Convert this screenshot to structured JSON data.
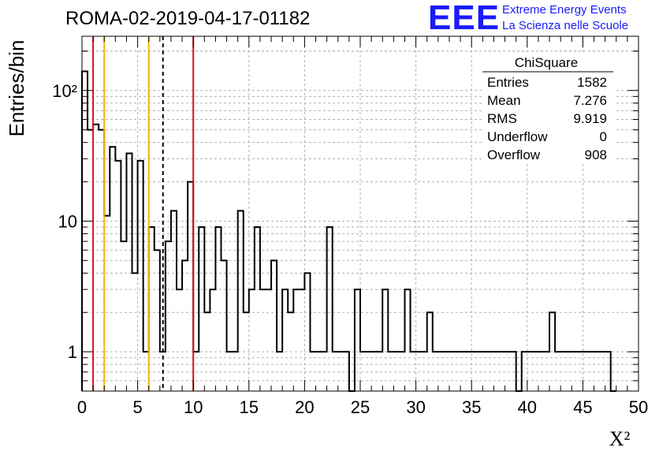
{
  "header": {
    "run_title": "ROMA-02-2019-04-17-01182",
    "logo_text": "EEE",
    "logo_line1": "Extreme Energy Events",
    "logo_line2": "La Scienza nelle Scuole",
    "logo_color": "#1a1aff"
  },
  "stats_box": {
    "title": "ChiSquare",
    "rows": [
      {
        "label": "Entries",
        "value": "1582"
      },
      {
        "label": "Mean",
        "value": "7.276"
      },
      {
        "label": "RMS",
        "value": "9.919"
      },
      {
        "label": "Underflow",
        "value": "0"
      },
      {
        "label": "Overflow",
        "value": "908"
      }
    ]
  },
  "chart_data": {
    "type": "bar",
    "style": "step-histogram",
    "xlabel": "X²",
    "ylabel": "Entries/bin",
    "xlim": [
      0,
      50
    ],
    "ylim": [
      0.5,
      260
    ],
    "yscale": "log",
    "grid": true,
    "bin_width": 0.5,
    "x_ticks": [
      "0",
      "5",
      "10",
      "15",
      "20",
      "25",
      "30",
      "35",
      "40",
      "45",
      "50"
    ],
    "y_ticks": [
      {
        "value": 1,
        "label": "1"
      },
      {
        "value": 10,
        "label": "10"
      },
      {
        "value": 100,
        "label": "10²"
      }
    ],
    "values": [
      140,
      50,
      55,
      50,
      11,
      37,
      29,
      7,
      33,
      4,
      29,
      1,
      9,
      6,
      1,
      7,
      12,
      3,
      5,
      20,
      1,
      9,
      2,
      3,
      9,
      5,
      1,
      1,
      12,
      2,
      3,
      9,
      3,
      3,
      5,
      1,
      3,
      2,
      3,
      3,
      4,
      1,
      1,
      1,
      9,
      1,
      1,
      1,
      0,
      3,
      1,
      1,
      1,
      1,
      3,
      1,
      1,
      1,
      3,
      1,
      1,
      1,
      2,
      1,
      1,
      1,
      1,
      1,
      1,
      1,
      1,
      1,
      1,
      1,
      1,
      1,
      1,
      1,
      0,
      1,
      1,
      1,
      1,
      1,
      2,
      1,
      1,
      1,
      1,
      1,
      1,
      1,
      1,
      1,
      1,
      0
    ],
    "vlines": [
      {
        "x": 1.0,
        "color": "#dd1111",
        "style": "solid"
      },
      {
        "x": 2.0,
        "color": "#f0b400",
        "style": "solid"
      },
      {
        "x": 6.0,
        "color": "#f0b400",
        "style": "solid"
      },
      {
        "x": 7.276,
        "color": "#000000",
        "style": "dashed"
      },
      {
        "x": 10.0,
        "color": "#dd1111",
        "style": "solid"
      }
    ]
  }
}
